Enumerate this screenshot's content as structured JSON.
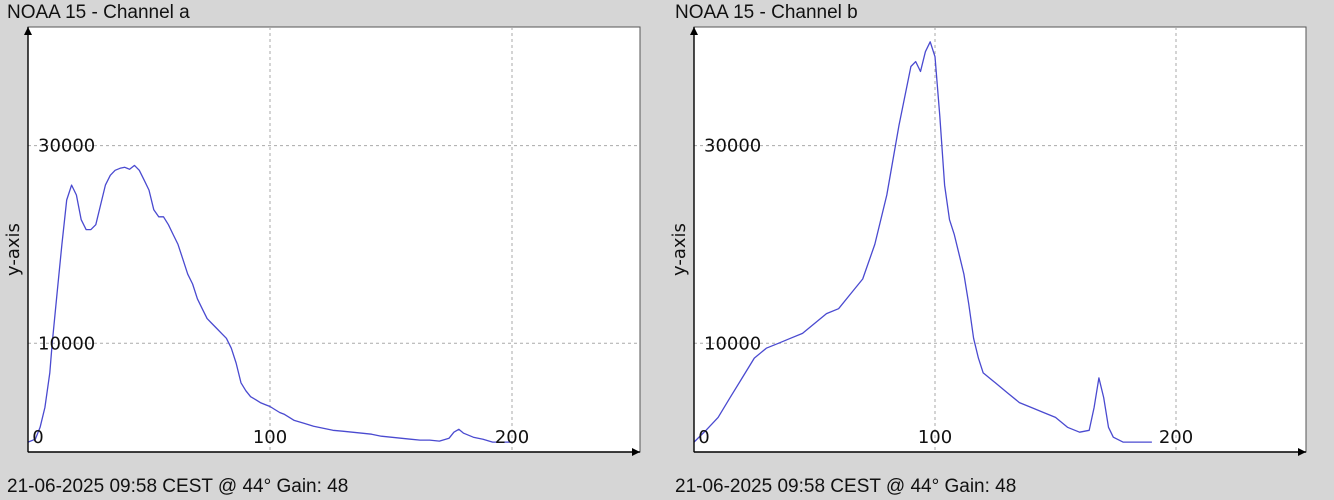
{
  "colors": {
    "background": "#d6d6d6",
    "plot_background": "#ffffff",
    "line": "#4a4ad0",
    "grid": "#aaaaaa",
    "axis": "#000000"
  },
  "chart_data": [
    {
      "type": "line",
      "title": "NOAA 15 - Channel a",
      "footer": "21-06-2025 09:58 CEST @ 44° Gain: 48",
      "xlabel": "",
      "ylabel": "y-axis",
      "xlim": [
        0,
        250
      ],
      "ylim": [
        -1000,
        42000
      ],
      "xticks": [
        0,
        100,
        200
      ],
      "yticks": [
        10000,
        30000
      ],
      "x_tick_labels": [
        "0",
        "100",
        "200"
      ],
      "y_tick_labels": [
        "10000",
        "30000"
      ],
      "grid": true,
      "series": [
        {
          "x": [
            0,
            3,
            5,
            7,
            9,
            10,
            12,
            14,
            16,
            18,
            20,
            22,
            24,
            26,
            28,
            30,
            32,
            34,
            36,
            38,
            40,
            42,
            44,
            46,
            48,
            50,
            52,
            54,
            56,
            58,
            60,
            62,
            64,
            66,
            68,
            70,
            72,
            74,
            76,
            78,
            80,
            82,
            84,
            86,
            88,
            90,
            92,
            94,
            96,
            98,
            100,
            102,
            104,
            106,
            108,
            110,
            114,
            118,
            122,
            126,
            130,
            134,
            138,
            142,
            146,
            150,
            154,
            158,
            162,
            166,
            170,
            174,
            176,
            178,
            180,
            184,
            188,
            192,
            196,
            200
          ],
          "values": [
            0,
            300,
            1500,
            3500,
            7000,
            10000,
            15000,
            20000,
            24500,
            26000,
            25000,
            22500,
            21500,
            21500,
            22000,
            24000,
            26000,
            27000,
            27500,
            27700,
            27800,
            27600,
            28000,
            27500,
            26500,
            25500,
            23500,
            22800,
            22800,
            22000,
            21000,
            20000,
            18500,
            17000,
            16000,
            14500,
            13500,
            12500,
            12000,
            11500,
            11000,
            10500,
            9500,
            8000,
            6000,
            5200,
            4600,
            4300,
            4000,
            3800,
            3600,
            3300,
            3000,
            2800,
            2500,
            2200,
            1900,
            1600,
            1400,
            1200,
            1100,
            1000,
            900,
            800,
            600,
            500,
            400,
            300,
            200,
            200,
            100,
            400,
            1000,
            1300,
            900,
            500,
            300,
            0,
            0,
            0
          ]
        }
      ]
    },
    {
      "type": "line",
      "title": "NOAA 15 - Channel b",
      "footer": "21-06-2025 09:58 CEST @ 44° Gain: 48",
      "xlabel": "",
      "ylabel": "y-axis",
      "xlim": [
        0,
        250
      ],
      "ylim": [
        -1000,
        42000
      ],
      "xticks": [
        0,
        100,
        200
      ],
      "yticks": [
        10000,
        30000
      ],
      "x_tick_labels": [
        "0",
        "100",
        "200"
      ],
      "y_tick_labels": [
        "10000",
        "30000"
      ],
      "grid": true,
      "series": [
        {
          "x": [
            0,
            5,
            10,
            15,
            20,
            25,
            30,
            35,
            40,
            45,
            50,
            55,
            60,
            65,
            70,
            75,
            80,
            85,
            90,
            92,
            94,
            96,
            98,
            100,
            102,
            104,
            106,
            108,
            110,
            112,
            114,
            116,
            118,
            120,
            125,
            130,
            135,
            140,
            145,
            150,
            155,
            160,
            164,
            166,
            168,
            170,
            172,
            174,
            178,
            182,
            186,
            190
          ],
          "values": [
            0,
            1200,
            2500,
            4500,
            6500,
            8500,
            9500,
            10000,
            10500,
            11000,
            12000,
            13000,
            13500,
            15000,
            16500,
            20000,
            25000,
            32000,
            38000,
            38500,
            37500,
            39500,
            40500,
            39000,
            33000,
            26000,
            22500,
            21000,
            19000,
            17000,
            14000,
            10500,
            8500,
            7000,
            6000,
            5000,
            4000,
            3500,
            3000,
            2500,
            1500,
            1000,
            1200,
            3500,
            6500,
            4500,
            1500,
            500,
            0,
            0,
            0,
            0
          ]
        }
      ]
    }
  ]
}
